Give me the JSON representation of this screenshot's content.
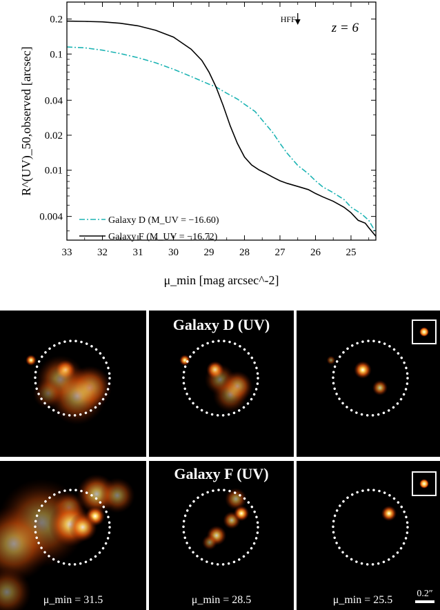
{
  "chart_data": {
    "type": "line",
    "title": "",
    "xlabel": "μ_min [mag arcsec^-2]",
    "ylabel": "R^(UV)_50,observed [arcsec]",
    "x_reversed": true,
    "xlim": [
      33.0,
      24.3
    ],
    "ylim": [
      0.0025,
      0.28
    ],
    "y_scale": "log",
    "x_ticks": [
      "33",
      "32",
      "31",
      "30",
      "29",
      "28",
      "27",
      "26",
      "25"
    ],
    "y_ticks": [
      "0.004",
      "0.01",
      "0.02",
      "0.04",
      "0.1",
      "0.2"
    ],
    "annotation_text": "z = 6",
    "marker_label": "HFF",
    "marker_x": 26.5,
    "legend_position": "bottom-left",
    "series": [
      {
        "name": "Galaxy D (M_UV = −16.60)",
        "color": "#1bb3b3",
        "style": "dash-dot",
        "x": [
          33.0,
          32.5,
          32.0,
          31.5,
          31.0,
          30.5,
          30.0,
          29.5,
          29.0,
          28.8,
          28.5,
          28.2,
          28.0,
          27.7,
          27.5,
          27.2,
          27.0,
          26.8,
          26.5,
          26.2,
          26.0,
          25.8,
          25.5,
          25.2,
          25.0,
          24.7,
          24.5,
          24.3
        ],
        "y": [
          0.115,
          0.113,
          0.108,
          0.101,
          0.093,
          0.084,
          0.074,
          0.064,
          0.055,
          0.052,
          0.046,
          0.041,
          0.037,
          0.032,
          0.027,
          0.021,
          0.017,
          0.014,
          0.011,
          0.0093,
          0.0081,
          0.0072,
          0.0064,
          0.0056,
          0.0048,
          0.0042,
          0.0037,
          0.0029
        ]
      },
      {
        "name": "Galaxy F (M_UV = −16.72)",
        "color": "#000000",
        "style": "solid",
        "x": [
          33.0,
          32.5,
          32.0,
          31.5,
          31.0,
          30.5,
          30.0,
          29.5,
          29.2,
          29.0,
          28.8,
          28.6,
          28.4,
          28.2,
          28.0,
          27.8,
          27.6,
          27.4,
          27.2,
          27.0,
          26.8,
          26.6,
          26.4,
          26.2,
          26.0,
          25.8,
          25.5,
          25.2,
          25.0,
          24.8,
          24.6,
          24.5,
          24.3
        ],
        "y": [
          0.192,
          0.191,
          0.189,
          0.184,
          0.175,
          0.16,
          0.14,
          0.11,
          0.088,
          0.07,
          0.052,
          0.036,
          0.024,
          0.017,
          0.013,
          0.0111,
          0.0101,
          0.0094,
          0.0087,
          0.0081,
          0.0077,
          0.0074,
          0.0071,
          0.0068,
          0.0063,
          0.0059,
          0.0054,
          0.0048,
          0.0043,
          0.0037,
          0.0035,
          0.0032,
          0.0027
        ]
      }
    ]
  },
  "panels": {
    "row_titles": [
      "Galaxy D (UV)",
      "Galaxy F (UV)"
    ],
    "column_labels": [
      "μ_min = 31.5",
      "μ_min = 28.5",
      "μ_min = 25.5"
    ],
    "scale_bar_label": "0.2″"
  }
}
